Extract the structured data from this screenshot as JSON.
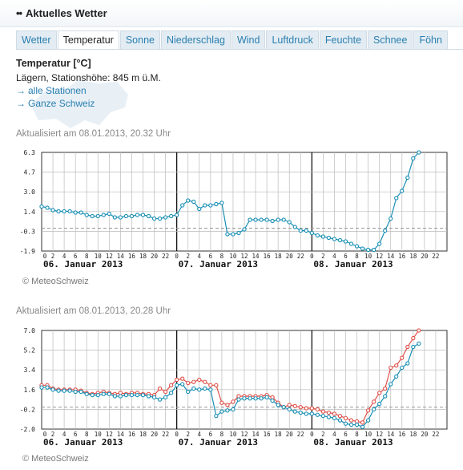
{
  "header": {
    "title": "Aktuelles Wetter"
  },
  "tabs": [
    "Wetter",
    "Temperatur",
    "Sonne",
    "Niederschlag",
    "Wind",
    "Luftdruck",
    "Feuchte",
    "Schnee",
    "Föhn"
  ],
  "active_tab": 1,
  "info": {
    "heading": "Temperatur [°C]",
    "station": "Lägern, Stationshöhe: 845 m ü.M.",
    "link_all_stations": "alle Stationen",
    "link_switzerland": "Ganze Schweiz"
  },
  "colors": {
    "link": "#2a7fb0",
    "series_blue": "#1a8fb5",
    "series_red": "#e0504a",
    "grid": "#bbbbbb"
  },
  "chart_data": [
    {
      "type": "line",
      "updated": "Aktualisiert am 08.01.2013, 20.32 Uhr",
      "credit": "© MeteoSchweiz",
      "yticks": [
        "6.3",
        "4.7",
        "3.0",
        "1.4",
        "-0.3",
        "-1.9"
      ],
      "ylim": [
        -1.9,
        6.3
      ],
      "xticks": [
        "0",
        "2",
        "4",
        "6",
        "8",
        "10",
        "12",
        "14",
        "16",
        "18",
        "20",
        "22",
        "0",
        "2",
        "4",
        "6",
        "8",
        "10",
        "12",
        "14",
        "16",
        "18",
        "20",
        "22",
        "0",
        "2",
        "4",
        "6",
        "8",
        "10",
        "12",
        "14",
        "16",
        "18",
        "20",
        "22"
      ],
      "day_labels": [
        "06. Januar 2013",
        "07. Januar 2013",
        "08. Januar 2013"
      ],
      "x_range_hours": [
        0,
        72
      ],
      "dashed_reference": 0,
      "series": [
        {
          "color": "#1a8fb5",
          "x": [
            0,
            1,
            2,
            3,
            4,
            5,
            6,
            7,
            8,
            9,
            10,
            11,
            12,
            13,
            14,
            15,
            16,
            17,
            18,
            19,
            20,
            21,
            22,
            23,
            24,
            25,
            26,
            27,
            28,
            29,
            30,
            31,
            32,
            33,
            34,
            35,
            36,
            37,
            38,
            39,
            40,
            41,
            42,
            43,
            44,
            45,
            46,
            47,
            48,
            49,
            50,
            51,
            52,
            53,
            54,
            55,
            56,
            57,
            58,
            59,
            60,
            61,
            62,
            63,
            64,
            65,
            66,
            67
          ],
          "y": [
            1.8,
            1.7,
            1.5,
            1.4,
            1.4,
            1.4,
            1.3,
            1.3,
            1.1,
            1.0,
            1.0,
            1.1,
            1.2,
            0.9,
            0.9,
            1.0,
            1.0,
            1.1,
            1.1,
            1.0,
            0.8,
            0.8,
            0.9,
            1.0,
            1.1,
            1.9,
            2.3,
            2.2,
            1.6,
            1.9,
            1.9,
            2.0,
            2.1,
            -0.5,
            -0.5,
            -0.4,
            -0.1,
            0.7,
            0.7,
            0.7,
            0.7,
            0.6,
            0.7,
            0.7,
            0.5,
            0.1,
            -0.2,
            -0.2,
            -0.4,
            -0.6,
            -0.7,
            -0.8,
            -0.9,
            -1.0,
            -1.1,
            -1.3,
            -1.5,
            -1.7,
            -1.8,
            -1.8,
            -1.3,
            -0.2,
            0.8,
            2.5,
            3.1,
            4.2,
            5.8,
            6.3
          ]
        }
      ]
    },
    {
      "type": "line",
      "updated": "Aktualisiert am 08.01.2013, 20.28 Uhr",
      "credit": "© MeteoSchweiz",
      "yticks": [
        "7.0",
        "5.2",
        "3.4",
        "1.6",
        "-0.2",
        "-2.0"
      ],
      "ylim": [
        -2.0,
        7.0
      ],
      "xticks": [
        "0",
        "2",
        "4",
        "6",
        "8",
        "10",
        "12",
        "14",
        "16",
        "18",
        "20",
        "22",
        "0",
        "2",
        "4",
        "6",
        "8",
        "10",
        "12",
        "14",
        "16",
        "18",
        "20",
        "22",
        "0",
        "2",
        "4",
        "6",
        "8",
        "10",
        "12",
        "14",
        "16",
        "18",
        "20",
        "22"
      ],
      "day_labels": [
        "06. Januar 2013",
        "07. Januar 2013",
        "08. Januar 2013"
      ],
      "x_range_hours": [
        0,
        72
      ],
      "dashed_reference": 0,
      "series": [
        {
          "color": "#e0504a",
          "x": [
            0,
            1,
            2,
            3,
            4,
            5,
            6,
            7,
            8,
            9,
            10,
            11,
            12,
            13,
            14,
            15,
            16,
            17,
            18,
            19,
            20,
            21,
            22,
            23,
            24,
            25,
            26,
            27,
            28,
            29,
            30,
            31,
            32,
            33,
            34,
            35,
            36,
            37,
            38,
            39,
            40,
            41,
            42,
            43,
            44,
            45,
            46,
            47,
            48,
            49,
            50,
            51,
            52,
            53,
            54,
            55,
            56,
            57,
            58,
            59,
            60,
            61,
            62,
            63,
            64,
            65,
            66,
            67
          ],
          "y": [
            2.0,
            2.0,
            1.7,
            1.6,
            1.6,
            1.6,
            1.6,
            1.5,
            1.3,
            1.2,
            1.3,
            1.4,
            1.3,
            1.2,
            1.3,
            1.2,
            1.3,
            1.3,
            1.2,
            1.2,
            1.1,
            1.7,
            1.4,
            2.0,
            2.5,
            2.6,
            2.2,
            2.3,
            2.5,
            2.3,
            2.0,
            2.0,
            0.4,
            0.2,
            0.5,
            1.0,
            1.0,
            1.0,
            1.0,
            1.0,
            1.1,
            0.9,
            0.4,
            0.0,
            0.2,
            0.1,
            0.0,
            -0.1,
            -0.1,
            -0.2,
            -0.4,
            -0.5,
            -0.6,
            -0.8,
            -1.0,
            -1.2,
            -1.3,
            -1.4,
            -0.3,
            0.5,
            1.3,
            1.7,
            3.6,
            3.8,
            4.5,
            5.5,
            6.3,
            7.0
          ]
        },
        {
          "color": "#1a8fb5",
          "x": [
            0,
            1,
            2,
            3,
            4,
            5,
            6,
            7,
            8,
            9,
            10,
            11,
            12,
            13,
            14,
            15,
            16,
            17,
            18,
            19,
            20,
            21,
            22,
            23,
            24,
            25,
            26,
            27,
            28,
            29,
            30,
            31,
            32,
            33,
            34,
            35,
            36,
            37,
            38,
            39,
            40,
            41,
            42,
            43,
            44,
            45,
            46,
            47,
            48,
            49,
            50,
            51,
            52,
            53,
            54,
            55,
            56,
            57,
            58,
            59,
            60,
            61,
            62,
            63,
            64,
            65,
            66,
            67
          ],
          "y": [
            1.8,
            1.8,
            1.6,
            1.5,
            1.5,
            1.5,
            1.4,
            1.4,
            1.2,
            1.1,
            1.1,
            1.2,
            1.2,
            1.0,
            1.0,
            1.1,
            1.1,
            1.1,
            1.1,
            1.0,
            0.9,
            0.7,
            0.9,
            1.3,
            2.0,
            2.1,
            1.4,
            1.7,
            1.6,
            1.7,
            1.6,
            -0.8,
            -0.4,
            -0.3,
            -0.2,
            0.7,
            0.8,
            0.8,
            0.8,
            0.8,
            0.9,
            0.6,
            0.2,
            0.0,
            -0.2,
            -0.4,
            -0.5,
            -0.6,
            -0.6,
            -0.7,
            -0.8,
            -0.9,
            -1.0,
            -1.2,
            -1.5,
            -1.6,
            -1.6,
            -1.8,
            -1.2,
            -0.2,
            0.3,
            1.0,
            2.1,
            2.8,
            3.6,
            4.0,
            5.5,
            5.8
          ]
        }
      ]
    }
  ]
}
